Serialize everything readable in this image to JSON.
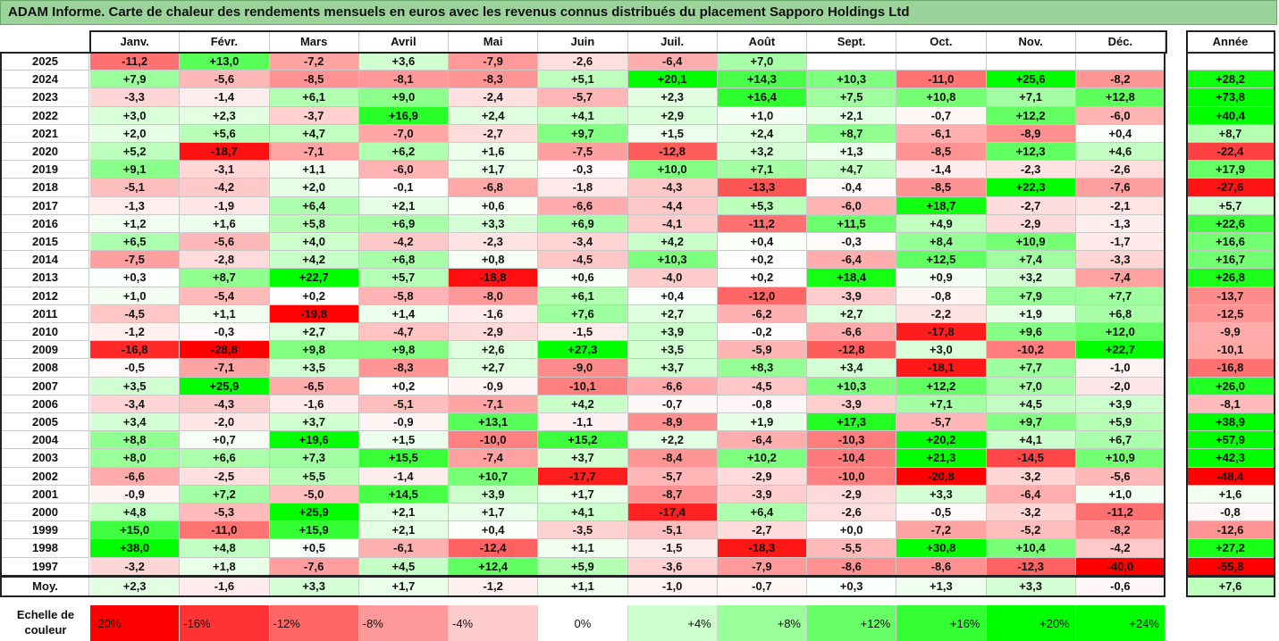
{
  "title": "ADAM Informe. Carte de chaleur des rendements mensuels en euros avec les revenus connus distribués du placement Sapporo Holdings Ltd",
  "colors": {
    "neg_max": "#ff0000",
    "neutral": "#ffffff",
    "pos_max": "#00ff00",
    "title_bg": "#9bd39b"
  },
  "chart_data": {
    "type": "heatmap",
    "months": [
      "Janv.",
      "Févr.",
      "Mars",
      "Avril",
      "Mai",
      "Juin",
      "Juil.",
      "Août",
      "Sept.",
      "Oct.",
      "Nov.",
      "Déc."
    ],
    "year_label": "Année",
    "avg_label": "Moy.",
    "rows": [
      {
        "year": "2025",
        "values": [
          "-11,2",
          "+13,0",
          "-7,2",
          "+3,6",
          "-7,9",
          "-2,6",
          "-6,4",
          "+7,0",
          "",
          "",
          "",
          ""
        ],
        "annual": ""
      },
      {
        "year": "2024",
        "values": [
          "+7,9",
          "-5,6",
          "-8,5",
          "-8,1",
          "-8,3",
          "+5,1",
          "+20,1",
          "+14,3",
          "+10,3",
          "-11,0",
          "+25,6",
          "-8,2"
        ],
        "annual": "+28,2"
      },
      {
        "year": "2023",
        "values": [
          "-3,3",
          "-1,4",
          "+6,1",
          "+9,0",
          "-2,4",
          "-5,7",
          "+2,3",
          "+16,4",
          "+7,5",
          "+10,8",
          "+7,1",
          "+12,8"
        ],
        "annual": "+73,8"
      },
      {
        "year": "2022",
        "values": [
          "+3,0",
          "+2,3",
          "-3,7",
          "+16,9",
          "+2,4",
          "+4,1",
          "+2,9",
          "+1,0",
          "+2,1",
          "-0,7",
          "+12,2",
          "-6,0"
        ],
        "annual": "+40,4"
      },
      {
        "year": "2021",
        "values": [
          "+2,0",
          "+5,6",
          "+4,7",
          "-7,0",
          "-2,7",
          "+9,7",
          "+1,5",
          "+2,4",
          "+8,7",
          "-6,1",
          "-8,9",
          "+0,4"
        ],
        "annual": "+8,7"
      },
      {
        "year": "2020",
        "values": [
          "+5,2",
          "-18,7",
          "-7,1",
          "+6,2",
          "+1,6",
          "-7,5",
          "-12,8",
          "+3,2",
          "+1,3",
          "-8,5",
          "+12,3",
          "+4,6"
        ],
        "annual": "-22,4"
      },
      {
        "year": "2019",
        "values": [
          "+9,1",
          "-3,1",
          "+1,1",
          "-6,0",
          "+1,7",
          "-0,3",
          "+10,0",
          "+7,1",
          "+4,7",
          "-1,4",
          "-2,3",
          "-2,6"
        ],
        "annual": "+17,9"
      },
      {
        "year": "2018",
        "values": [
          "-5,1",
          "-4,2",
          "+2,0",
          "-0,1",
          "-6,8",
          "-1,8",
          "-4,3",
          "-13,3",
          "-0,4",
          "-8,5",
          "+22,3",
          "-7,6"
        ],
        "annual": "-27,6"
      },
      {
        "year": "2017",
        "values": [
          "-1,3",
          "-1,9",
          "+6,4",
          "+2,1",
          "+0,6",
          "-6,6",
          "-4,4",
          "+5,3",
          "-6,0",
          "+18,7",
          "-2,7",
          "-2,1"
        ],
        "annual": "+5,7"
      },
      {
        "year": "2016",
        "values": [
          "+1,2",
          "+1,6",
          "+5,8",
          "+6,9",
          "+3,3",
          "+6,9",
          "-4,1",
          "-11,2",
          "+11,5",
          "+4,9",
          "-2,9",
          "-1,3"
        ],
        "annual": "+22,6"
      },
      {
        "year": "2015",
        "values": [
          "+6,5",
          "-5,6",
          "+4,0",
          "-4,2",
          "-2,3",
          "-3,4",
          "+4,2",
          "+0,4",
          "-0,3",
          "+8,4",
          "+10,9",
          "-1,7"
        ],
        "annual": "+16,6"
      },
      {
        "year": "2014",
        "values": [
          "-7,5",
          "-2,8",
          "+4,2",
          "+6,8",
          "+0,8",
          "-4,5",
          "+10,3",
          "+0,2",
          "-6,4",
          "+12,5",
          "+7,4",
          "-3,3"
        ],
        "annual": "+16,7"
      },
      {
        "year": "2013",
        "values": [
          "+0,3",
          "+8,7",
          "+22,7",
          "+5,7",
          "-18,8",
          "+0,6",
          "-4,0",
          "+0,2",
          "+18,4",
          "+0,9",
          "+3,2",
          "-7,4"
        ],
        "annual": "+26,8"
      },
      {
        "year": "2012",
        "values": [
          "+1,0",
          "-5,4",
          "+0,2",
          "-5,8",
          "-8,0",
          "+6,1",
          "+0,4",
          "-12,0",
          "-3,9",
          "-0,8",
          "+7,9",
          "+7,7"
        ],
        "annual": "-13,7"
      },
      {
        "year": "2011",
        "values": [
          "-4,5",
          "+1,1",
          "-19,8",
          "+1,4",
          "-1,6",
          "+7,6",
          "+2,7",
          "-6,2",
          "+2,7",
          "-2,2",
          "+1,9",
          "+6,8"
        ],
        "annual": "-12,5"
      },
      {
        "year": "2010",
        "values": [
          "-1,2",
          "-0,3",
          "+2,7",
          "-4,7",
          "-2,9",
          "-1,5",
          "+3,9",
          "-0,2",
          "-6,6",
          "-17,8",
          "+9,6",
          "+12,0"
        ],
        "annual": "-9,9"
      },
      {
        "year": "2009",
        "values": [
          "-16,8",
          "-28,8",
          "+9,8",
          "+9,8",
          "+2,6",
          "+27,3",
          "+3,5",
          "-5,9",
          "-12,8",
          "+3,0",
          "-10,2",
          "+22,7"
        ],
        "annual": "-10,1"
      },
      {
        "year": "2008",
        "values": [
          "-0,5",
          "-7,1",
          "+3,5",
          "-8,3",
          "+2,7",
          "-9,0",
          "+3,7",
          "+8,3",
          "+3,4",
          "-18,1",
          "+7,7",
          "-1,0"
        ],
        "annual": "-16,8"
      },
      {
        "year": "2007",
        "values": [
          "+3,5",
          "+25,9",
          "-6,5",
          "+0,2",
          "-0,9",
          "-10,1",
          "-6,6",
          "-4,5",
          "+10,3",
          "+12,2",
          "+7,0",
          "-2,0"
        ],
        "annual": "+26,0"
      },
      {
        "year": "2006",
        "values": [
          "-3,4",
          "-4,3",
          "-1,6",
          "-5,1",
          "-7,1",
          "+4,2",
          "-0,7",
          "-0,8",
          "-3,9",
          "+7,1",
          "+4,5",
          "+3,9"
        ],
        "annual": "-8,1"
      },
      {
        "year": "2005",
        "values": [
          "+3,4",
          "-2,0",
          "+3,7",
          "-0,9",
          "+13,1",
          "-1,1",
          "-8,9",
          "+1,9",
          "+17,3",
          "-5,7",
          "+9,7",
          "+5,9"
        ],
        "annual": "+38,9"
      },
      {
        "year": "2004",
        "values": [
          "+8,8",
          "+0,7",
          "+19,6",
          "+1,5",
          "-10,0",
          "+15,2",
          "+2,2",
          "-6,4",
          "-10,3",
          "+20,2",
          "+4,1",
          "+6,7"
        ],
        "annual": "+57,9"
      },
      {
        "year": "2003",
        "values": [
          "+8,0",
          "+6,6",
          "+7,3",
          "+15,5",
          "-7,4",
          "+3,7",
          "-8,4",
          "+10,2",
          "-10,4",
          "+21,3",
          "-14,5",
          "+10,9"
        ],
        "annual": "+42,3"
      },
      {
        "year": "2002",
        "values": [
          "-6,6",
          "-2,5",
          "+5,5",
          "-1,4",
          "+10,7",
          "-17,7",
          "-5,7",
          "-2,9",
          "-10,0",
          "-20,8",
          "-3,2",
          "-5,6"
        ],
        "annual": "-48,4"
      },
      {
        "year": "2001",
        "values": [
          "-0,9",
          "+7,2",
          "-5,0",
          "+14,5",
          "+3,9",
          "+1,7",
          "-8,7",
          "-3,9",
          "-2,9",
          "+3,3",
          "-6,4",
          "+1,0"
        ],
        "annual": "+1,6"
      },
      {
        "year": "2000",
        "values": [
          "+4,8",
          "-5,3",
          "+25,9",
          "+2,1",
          "+1,7",
          "+4,1",
          "-17,4",
          "+6,4",
          "-2,6",
          "-0,5",
          "-3,2",
          "-11,2"
        ],
        "annual": "-0,8"
      },
      {
        "year": "1999",
        "values": [
          "+15,0",
          "-11,0",
          "+15,9",
          "+2,1",
          "+0,4",
          "-3,5",
          "-5,1",
          "-2,7",
          "+0,0",
          "-7,2",
          "-5,2",
          "-8,2"
        ],
        "annual": "-12,6"
      },
      {
        "year": "1998",
        "values": [
          "+38,0",
          "+4,8",
          "+0,5",
          "-6,1",
          "-12,4",
          "+1,1",
          "-1,5",
          "-18,3",
          "-5,5",
          "+30,8",
          "+10,4",
          "-4,2"
        ],
        "annual": "+27,2"
      },
      {
        "year": "1997",
        "values": [
          "-3,2",
          "+1,8",
          "-7,6",
          "+4,5",
          "+12,4",
          "+5,9",
          "-3,6",
          "-7,9",
          "-8,6",
          "-8,6",
          "-12,3",
          "-40,0"
        ],
        "annual": "-55,8"
      }
    ],
    "averages": {
      "values": [
        "+2,3",
        "-1,6",
        "+3,3",
        "+1,7",
        "-1,2",
        "+1,1",
        "-1,0",
        "-0,7",
        "+0,3",
        "+1,3",
        "+3,3",
        "-0,6"
      ],
      "annual": "+7,6"
    },
    "scale": {
      "label": "Echelle de couleur",
      "steps": [
        {
          "label": "-20%",
          "value": -20
        },
        {
          "label": "-16%",
          "value": -16
        },
        {
          "label": "-12%",
          "value": -12
        },
        {
          "label": "-8%",
          "value": -8
        },
        {
          "label": "-4%",
          "value": -4
        },
        {
          "label": "0%",
          "value": 0
        },
        {
          "label": "+4%",
          "value": 4
        },
        {
          "label": "+8%",
          "value": 8
        },
        {
          "label": "+12%",
          "value": 12
        },
        {
          "label": "+16%",
          "value": 16
        },
        {
          "label": "+20%",
          "value": 20
        },
        {
          "label": "+24%",
          "value": 24
        }
      ]
    }
  }
}
